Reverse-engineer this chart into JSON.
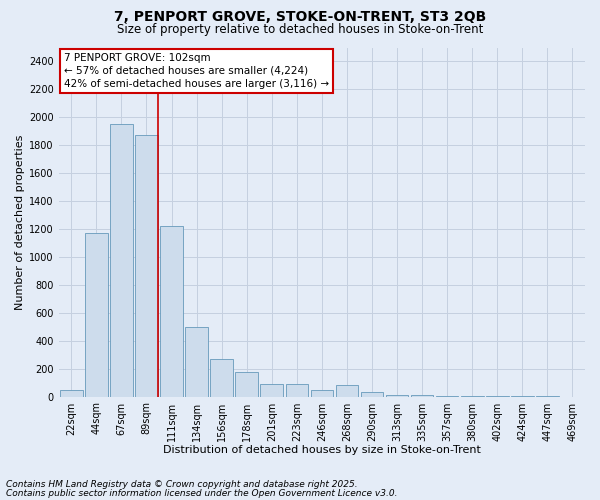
{
  "title_line1": "7, PENPORT GROVE, STOKE-ON-TRENT, ST3 2QB",
  "title_line2": "Size of property relative to detached houses in Stoke-on-Trent",
  "xlabel": "Distribution of detached houses by size in Stoke-on-Trent",
  "ylabel": "Number of detached properties",
  "categories": [
    "22sqm",
    "44sqm",
    "67sqm",
    "89sqm",
    "111sqm",
    "134sqm",
    "156sqm",
    "178sqm",
    "201sqm",
    "223sqm",
    "246sqm",
    "268sqm",
    "290sqm",
    "313sqm",
    "335sqm",
    "357sqm",
    "380sqm",
    "402sqm",
    "424sqm",
    "447sqm",
    "469sqm"
  ],
  "values": [
    50,
    1175,
    1950,
    1875,
    1225,
    500,
    270,
    175,
    90,
    90,
    50,
    85,
    30,
    15,
    8,
    4,
    2,
    2,
    1,
    1,
    0
  ],
  "bar_color": "#cddcec",
  "bar_edge_color": "#6699bb",
  "grid_color": "#c5d0e0",
  "bg_color": "#e4ecf7",
  "vline_color": "#cc0000",
  "vline_pos": 3.45,
  "annotation_text": "7 PENPORT GROVE: 102sqm\n← 57% of detached houses are smaller (4,224)\n42% of semi-detached houses are larger (3,116) →",
  "annotation_box_color": "#ffffff",
  "annotation_box_edge": "#cc0000",
  "footer_line1": "Contains HM Land Registry data © Crown copyright and database right 2025.",
  "footer_line2": "Contains public sector information licensed under the Open Government Licence v3.0.",
  "ylim": [
    0,
    2500
  ],
  "yticks": [
    0,
    200,
    400,
    600,
    800,
    1000,
    1200,
    1400,
    1600,
    1800,
    2000,
    2200,
    2400
  ],
  "title_fontsize": 10,
  "subtitle_fontsize": 8.5,
  "axis_label_fontsize": 8,
  "tick_fontsize": 7,
  "footer_fontsize": 6.5,
  "annotation_fontsize": 7.5
}
